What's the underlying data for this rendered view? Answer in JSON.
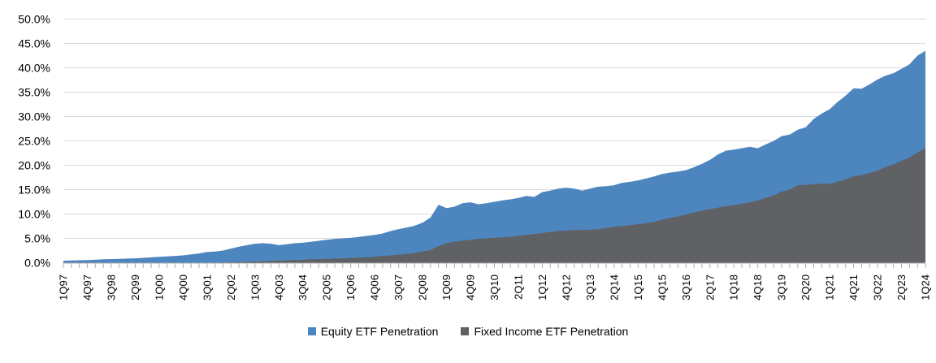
{
  "chart_data": {
    "type": "area",
    "stacked": false,
    "overlapping": true,
    "title": "",
    "xlabel": "",
    "ylabel": "",
    "ylim": [
      0,
      50
    ],
    "y_tick_step": 5,
    "y_tick_labels": [
      "0.0%",
      "5.0%",
      "10.0%",
      "15.0%",
      "20.0%",
      "25.0%",
      "30.0%",
      "35.0%",
      "40.0%",
      "45.0%",
      "50.0%"
    ],
    "x_tick_label_every": 3,
    "grid": true,
    "grid_color": "#D9D9D9",
    "axis_color": "#ADADAD",
    "text_color": "#000000",
    "legend_position": "bottom",
    "categories": [
      "1Q97",
      "2Q97",
      "3Q97",
      "4Q97",
      "1Q98",
      "2Q98",
      "3Q98",
      "4Q98",
      "1Q99",
      "2Q99",
      "3Q99",
      "4Q99",
      "1Q00",
      "2Q00",
      "3Q00",
      "4Q00",
      "1Q01",
      "2Q01",
      "3Q01",
      "4Q01",
      "1Q02",
      "2Q02",
      "3Q02",
      "4Q02",
      "1Q03",
      "2Q03",
      "3Q03",
      "4Q03",
      "1Q04",
      "2Q04",
      "3Q04",
      "4Q04",
      "1Q05",
      "2Q05",
      "3Q05",
      "4Q05",
      "1Q06",
      "2Q06",
      "3Q06",
      "4Q06",
      "1Q07",
      "2Q07",
      "3Q07",
      "4Q07",
      "1Q08",
      "2Q08",
      "3Q08",
      "4Q08",
      "1Q09",
      "2Q09",
      "3Q09",
      "4Q09",
      "1Q10",
      "2Q10",
      "3Q10",
      "4Q10",
      "1Q11",
      "2Q11",
      "3Q11",
      "4Q11",
      "1Q12",
      "2Q12",
      "3Q12",
      "4Q12",
      "1Q13",
      "2Q13",
      "3Q13",
      "4Q13",
      "1Q14",
      "2Q14",
      "3Q14",
      "4Q14",
      "1Q15",
      "2Q15",
      "3Q15",
      "4Q15",
      "1Q16",
      "2Q16",
      "3Q16",
      "4Q16",
      "1Q17",
      "2Q17",
      "3Q17",
      "4Q17",
      "1Q18",
      "2Q18",
      "3Q18",
      "4Q18",
      "1Q19",
      "2Q19",
      "3Q19",
      "4Q19",
      "1Q20",
      "2Q20",
      "3Q20",
      "4Q20",
      "1Q21",
      "2Q21",
      "3Q21",
      "4Q21",
      "1Q22",
      "2Q22",
      "3Q22",
      "4Q22",
      "1Q23",
      "2Q23",
      "3Q23",
      "4Q23",
      "1Q24"
    ],
    "series": [
      {
        "name": "Equity ETF Penetration",
        "color": "#4D86BE",
        "values": [
          0.4,
          0.45,
          0.5,
          0.55,
          0.6,
          0.7,
          0.75,
          0.8,
          0.85,
          0.9,
          1.0,
          1.1,
          1.2,
          1.3,
          1.4,
          1.5,
          1.7,
          1.9,
          2.2,
          2.3,
          2.5,
          2.9,
          3.3,
          3.6,
          3.9,
          4.0,
          3.9,
          3.6,
          3.8,
          4.0,
          4.1,
          4.3,
          4.5,
          4.7,
          4.9,
          5.0,
          5.1,
          5.3,
          5.5,
          5.7,
          6.0,
          6.5,
          6.9,
          7.2,
          7.6,
          8.2,
          9.3,
          11.9,
          11.2,
          11.5,
          12.2,
          12.4,
          12.0,
          12.2,
          12.5,
          12.8,
          13.0,
          13.3,
          13.7,
          13.5,
          14.5,
          14.8,
          15.2,
          15.4,
          15.2,
          14.8,
          15.2,
          15.6,
          15.7,
          15.9,
          16.4,
          16.6,
          16.9,
          17.3,
          17.7,
          18.2,
          18.5,
          18.7,
          19.0,
          19.6,
          20.3,
          21.1,
          22.2,
          23.0,
          23.2,
          23.5,
          23.8,
          23.5,
          24.3,
          25.0,
          26.0,
          26.3,
          27.3,
          27.8,
          29.5,
          30.6,
          31.5,
          33.0,
          34.3,
          35.8,
          35.7,
          36.6,
          37.6,
          38.4,
          38.9,
          39.8,
          40.7,
          42.5,
          43.5
        ]
      },
      {
        "name": "Fixed Income ETF Penetration",
        "color": "#606164",
        "values": [
          0,
          0,
          0,
          0,
          0,
          0,
          0,
          0,
          0,
          0,
          0,
          0,
          0,
          0,
          0,
          0,
          0,
          0,
          0,
          0,
          0.05,
          0.1,
          0.15,
          0.2,
          0.25,
          0.3,
          0.35,
          0.4,
          0.5,
          0.55,
          0.6,
          0.7,
          0.75,
          0.8,
          0.85,
          0.9,
          1.0,
          1.05,
          1.1,
          1.2,
          1.4,
          1.5,
          1.65,
          1.8,
          2.0,
          2.3,
          2.6,
          3.4,
          4.0,
          4.3,
          4.5,
          4.7,
          4.9,
          5.0,
          5.1,
          5.2,
          5.3,
          5.5,
          5.7,
          5.9,
          6.1,
          6.3,
          6.5,
          6.6,
          6.7,
          6.7,
          6.8,
          6.9,
          7.1,
          7.4,
          7.5,
          7.7,
          7.9,
          8.1,
          8.4,
          8.8,
          9.2,
          9.5,
          9.9,
          10.3,
          10.7,
          11.0,
          11.3,
          11.6,
          11.8,
          12.1,
          12.4,
          12.8,
          13.3,
          13.8,
          14.6,
          15.0,
          15.9,
          16.0,
          16.1,
          16.2,
          16.2,
          16.6,
          17.1,
          17.7,
          18.0,
          18.4,
          18.9,
          19.6,
          20.2,
          20.9,
          21.6,
          22.6,
          23.5
        ]
      }
    ]
  }
}
